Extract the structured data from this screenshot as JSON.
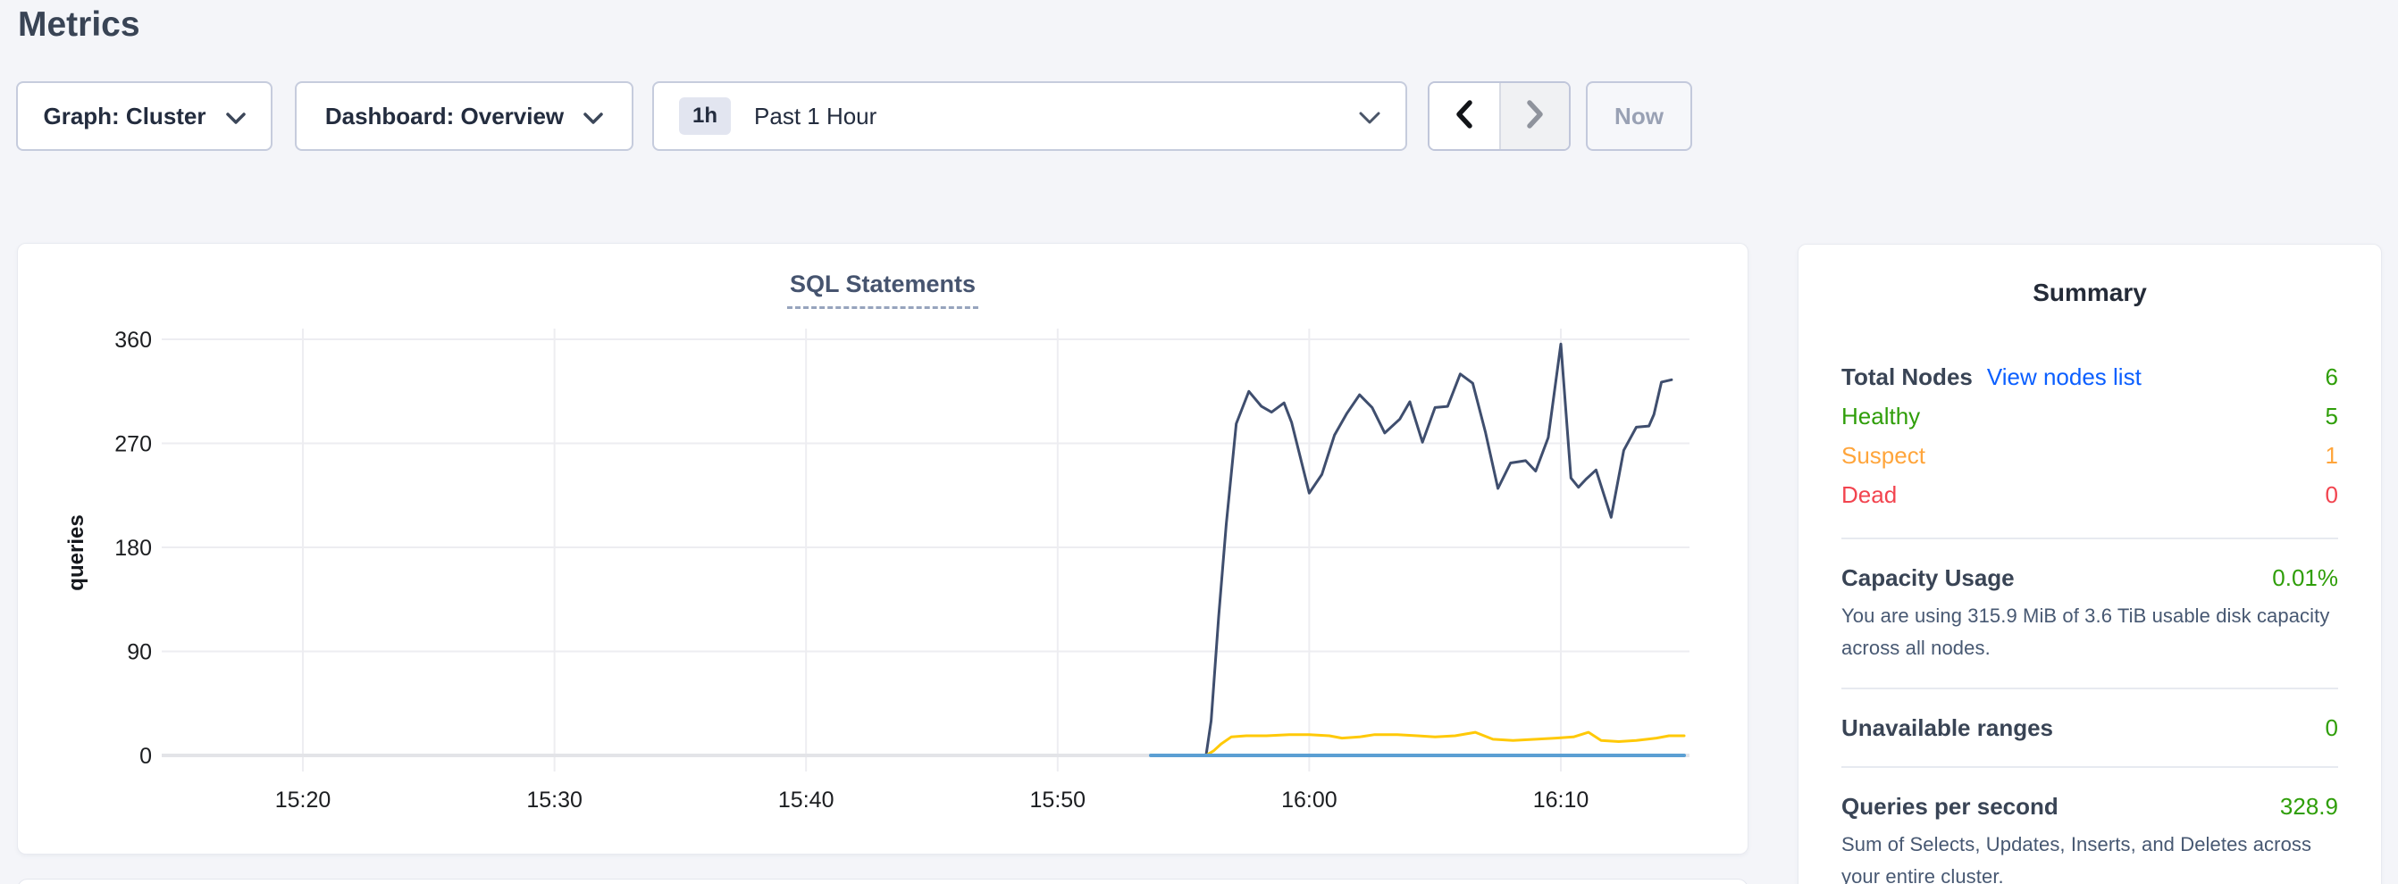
{
  "page": {
    "title": "Metrics"
  },
  "controls": {
    "graph_dropdown": {
      "label": "Graph: Cluster"
    },
    "dashboard_dropdown": {
      "label": "Dashboard: Overview"
    },
    "time_range": {
      "badge": "1h",
      "label": "Past 1 Hour"
    },
    "now_button": {
      "label": "Now"
    }
  },
  "chart_data": {
    "type": "line",
    "title": "SQL Statements",
    "ylabel": "queries",
    "x_axis": {
      "tick_labels": [
        "15:20",
        "15:30",
        "15:40",
        "15:50",
        "16:00",
        "16:10"
      ],
      "tick_minutes": [
        20,
        30,
        40,
        50,
        60,
        70
      ],
      "domain_minutes": [
        14.4,
        75.2
      ],
      "note": "x values are minutes after 15:00; data begins ~15:54"
    },
    "y_axis": {
      "ticks": [
        0,
        90,
        180,
        270,
        360
      ],
      "range": [
        0,
        360
      ],
      "grid": true
    },
    "legend": "none",
    "series": [
      {
        "name": "dark-blue-series",
        "color": "#3f4e6e",
        "points": [
          [
            53.7,
            0
          ],
          [
            55.9,
            0
          ],
          [
            56.1,
            30
          ],
          [
            56.4,
            120
          ],
          [
            56.7,
            200
          ],
          [
            57.1,
            287
          ],
          [
            57.6,
            315
          ],
          [
            58.1,
            302
          ],
          [
            58.5,
            297
          ],
          [
            59.0,
            305
          ],
          [
            59.3,
            288
          ],
          [
            60.0,
            227
          ],
          [
            60.5,
            243
          ],
          [
            61.0,
            277
          ],
          [
            61.5,
            296
          ],
          [
            62.0,
            312
          ],
          [
            62.5,
            301
          ],
          [
            63.0,
            279
          ],
          [
            63.6,
            291
          ],
          [
            64.0,
            306
          ],
          [
            64.5,
            271
          ],
          [
            65.0,
            301
          ],
          [
            65.5,
            302
          ],
          [
            66.0,
            330
          ],
          [
            66.5,
            322
          ],
          [
            67.0,
            280
          ],
          [
            67.5,
            231
          ],
          [
            68.0,
            253
          ],
          [
            68.6,
            255
          ],
          [
            69.0,
            246
          ],
          [
            69.5,
            275
          ],
          [
            70.0,
            356
          ],
          [
            70.4,
            240
          ],
          [
            70.7,
            232
          ],
          [
            71.0,
            239
          ],
          [
            71.4,
            247
          ],
          [
            72.0,
            206
          ],
          [
            72.5,
            264
          ],
          [
            73.0,
            284
          ],
          [
            73.5,
            285
          ],
          [
            73.7,
            295
          ],
          [
            74.0,
            323
          ],
          [
            74.4,
            325
          ]
        ]
      },
      {
        "name": "yellow-series",
        "color": "#ffc907",
        "points": [
          [
            53.7,
            0
          ],
          [
            55.9,
            0
          ],
          [
            56.2,
            4
          ],
          [
            56.5,
            10
          ],
          [
            56.9,
            16
          ],
          [
            57.5,
            17
          ],
          [
            58.3,
            17
          ],
          [
            59.2,
            18
          ],
          [
            60.0,
            18
          ],
          [
            60.8,
            17
          ],
          [
            61.3,
            15
          ],
          [
            62.0,
            16
          ],
          [
            62.6,
            18
          ],
          [
            63.5,
            18
          ],
          [
            64.3,
            17
          ],
          [
            65.0,
            16
          ],
          [
            65.8,
            17
          ],
          [
            66.6,
            20
          ],
          [
            67.3,
            14
          ],
          [
            68.1,
            13
          ],
          [
            69.0,
            14
          ],
          [
            69.8,
            15
          ],
          [
            70.5,
            16
          ],
          [
            71.1,
            20
          ],
          [
            71.6,
            13
          ],
          [
            72.3,
            12
          ],
          [
            73.0,
            13
          ],
          [
            73.8,
            15
          ],
          [
            74.3,
            17
          ],
          [
            74.9,
            17
          ]
        ]
      },
      {
        "name": "light-blue-series",
        "color": "#5b9fd3",
        "points": [
          [
            53.7,
            0
          ],
          [
            74.9,
            0
          ]
        ]
      }
    ]
  },
  "summary": {
    "title": "Summary",
    "value_color": "#2f9e09",
    "total_nodes": {
      "label": "Total Nodes",
      "link": "View nodes list",
      "value": "6",
      "color": "#2f9e09"
    },
    "statuses": [
      {
        "label": "Healthy",
        "value": "5",
        "color": "#2f9e09"
      },
      {
        "label": "Suspect",
        "value": "1",
        "color": "#ffa53b"
      },
      {
        "label": "Dead",
        "value": "0",
        "color": "#f2444f"
      }
    ],
    "metrics": [
      {
        "label": "Capacity Usage",
        "value": "0.01%",
        "description": "You are using 315.9 MiB of 3.6 TiB usable disk capacity across all nodes."
      },
      {
        "label": "Unavailable ranges",
        "value": "0",
        "description": ""
      },
      {
        "label": "Queries per second",
        "value": "328.9",
        "description": "Sum of Selects, Updates, Inserts, and Deletes across your entire cluster."
      }
    ]
  }
}
